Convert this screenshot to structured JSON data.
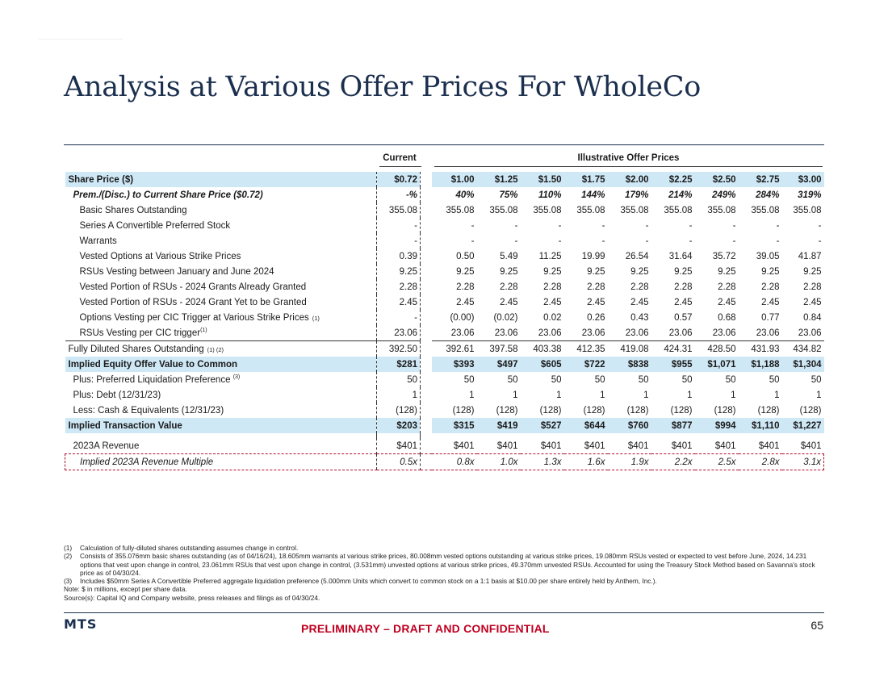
{
  "page": {
    "title": "Analysis at Various Offer Prices For WholeCo",
    "confidential": "PRELIMINARY – DRAFT AND CONFIDENTIAL",
    "page_number": "65",
    "logo_text": "MTS"
  },
  "table": {
    "group_current": "Current",
    "group_illustrative": "Illustrative Offer Prices",
    "rows": [
      {
        "label": "Share Price ($)",
        "current": "$0.72",
        "values": [
          "$1.00",
          "$1.25",
          "$1.50",
          "$1.75",
          "$2.00",
          "$2.25",
          "$2.50",
          "$2.75",
          "$3.00"
        ]
      },
      {
        "label": "Prem./(Disc.) to Current Share Price ($0.72)",
        "current": "-%",
        "values": [
          "40%",
          "75%",
          "110%",
          "144%",
          "179%",
          "214%",
          "249%",
          "284%",
          "319%"
        ]
      },
      {
        "label": "Basic Shares Outstanding",
        "current": "355.08",
        "values": [
          "355.08",
          "355.08",
          "355.08",
          "355.08",
          "355.08",
          "355.08",
          "355.08",
          "355.08",
          "355.08"
        ]
      },
      {
        "label": "Series A Convertible Preferred Stock",
        "current": "-",
        "values": [
          "-",
          "-",
          "-",
          "-",
          "-",
          "-",
          "-",
          "-",
          "-"
        ]
      },
      {
        "label": "Warrants",
        "current": "-",
        "values": [
          "-",
          "-",
          "-",
          "-",
          "-",
          "-",
          "-",
          "-",
          "-"
        ]
      },
      {
        "label": "Vested Options at Various Strike Prices",
        "current": "0.39",
        "values": [
          "0.50",
          "5.49",
          "11.25",
          "19.99",
          "26.54",
          "31.64",
          "35.72",
          "39.05",
          "41.87"
        ]
      },
      {
        "label": "RSUs Vesting between January and June 2024",
        "current": "9.25",
        "values": [
          "9.25",
          "9.25",
          "9.25",
          "9.25",
          "9.25",
          "9.25",
          "9.25",
          "9.25",
          "9.25"
        ]
      },
      {
        "label": "Vested Portion of RSUs - 2024 Grants Already Granted",
        "current": "2.28",
        "values": [
          "2.28",
          "2.28",
          "2.28",
          "2.28",
          "2.28",
          "2.28",
          "2.28",
          "2.28",
          "2.28"
        ]
      },
      {
        "label": "Vested Portion of RSUs - 2024 Grant Yet to be Granted",
        "current": "2.45",
        "values": [
          "2.45",
          "2.45",
          "2.45",
          "2.45",
          "2.45",
          "2.45",
          "2.45",
          "2.45",
          "2.45"
        ]
      },
      {
        "label": "Options Vesting per CIC Trigger at Various Strike Prices",
        "ref": "(1)",
        "current": "-",
        "values": [
          "(0.00)",
          "(0.02)",
          "0.02",
          "0.26",
          "0.43",
          "0.57",
          "0.68",
          "0.77",
          "0.84"
        ]
      },
      {
        "label": "RSUs Vesting per CIC trigger",
        "ref": "(1)",
        "current": "23.06",
        "values": [
          "23.06",
          "23.06",
          "23.06",
          "23.06",
          "23.06",
          "23.06",
          "23.06",
          "23.06",
          "23.06"
        ]
      },
      {
        "label": "Fully Diluted Shares Outstanding",
        "ref": "(1) (2)",
        "current": "392.50",
        "values": [
          "392.61",
          "397.58",
          "403.38",
          "412.35",
          "419.08",
          "424.31",
          "428.50",
          "431.93",
          "434.82"
        ]
      },
      {
        "label": "Implied Equity Offer Value to Common",
        "current": "$281",
        "values": [
          "$393",
          "$497",
          "$605",
          "$722",
          "$838",
          "$955",
          "$1,071",
          "$1,188",
          "$1,304"
        ]
      },
      {
        "label": "Plus: Preferred Liquidation Preference",
        "ref": "(3)",
        "current": "50",
        "values": [
          "50",
          "50",
          "50",
          "50",
          "50",
          "50",
          "50",
          "50",
          "50"
        ]
      },
      {
        "label": "Plus: Debt (12/31/23)",
        "current": "1",
        "values": [
          "1",
          "1",
          "1",
          "1",
          "1",
          "1",
          "1",
          "1",
          "1"
        ]
      },
      {
        "label": "Less: Cash & Equivalents (12/31/23)",
        "current": "(128)",
        "values": [
          "(128)",
          "(128)",
          "(128)",
          "(128)",
          "(128)",
          "(128)",
          "(128)",
          "(128)",
          "(128)"
        ]
      },
      {
        "label": "Implied Transaction Value",
        "current": "$203",
        "values": [
          "$315",
          "$419",
          "$527",
          "$644",
          "$760",
          "$877",
          "$994",
          "$1,110",
          "$1,227"
        ]
      },
      {
        "label": "2023A Revenue",
        "current": "$401",
        "values": [
          "$401",
          "$401",
          "$401",
          "$401",
          "$401",
          "$401",
          "$401",
          "$401",
          "$401"
        ]
      },
      {
        "label": "Implied 2023A Revenue Multiple",
        "current": "0.5x",
        "values": [
          "0.8x",
          "1.0x",
          "1.3x",
          "1.6x",
          "1.9x",
          "2.2x",
          "2.5x",
          "2.8x",
          "3.1x"
        ]
      }
    ]
  },
  "footnotes": [
    {
      "num": "(1)",
      "text": "Calculation of fully-diluted shares outstanding assumes change in control."
    },
    {
      "num": "(2)",
      "text": "Consists of 355.076mm basic shares outstanding (as of 04/16/24), 18.605mm warrants at various strike prices, 80.008mm vested options outstanding at various strike prices, 19.080mm RSUs vested or expected to vest before June, 2024, 14.231 options that vest upon change in control, 23.061mm RSUs that vest upon change in control, (3.531mm) unvested options at various strike prices, 49.370mm unvested RSUs. Accounted for using the Treasury Stock Method based on Savanna's stock price as of 04/30/24."
    },
    {
      "num": "(3)",
      "text": "Includes $50mm Series A Convertible Preferred aggregate liquidation preference (5.000mm Units which convert to common stock on a 1:1 basis at $10.00 per share entirely held by Anthem, Inc.)."
    },
    {
      "num": "",
      "text": "Note: $ in millions, except per share data."
    },
    {
      "num": "",
      "text": "Source(s): Capital IQ and Company website, press releases and filings as of 04/30/24."
    }
  ]
}
